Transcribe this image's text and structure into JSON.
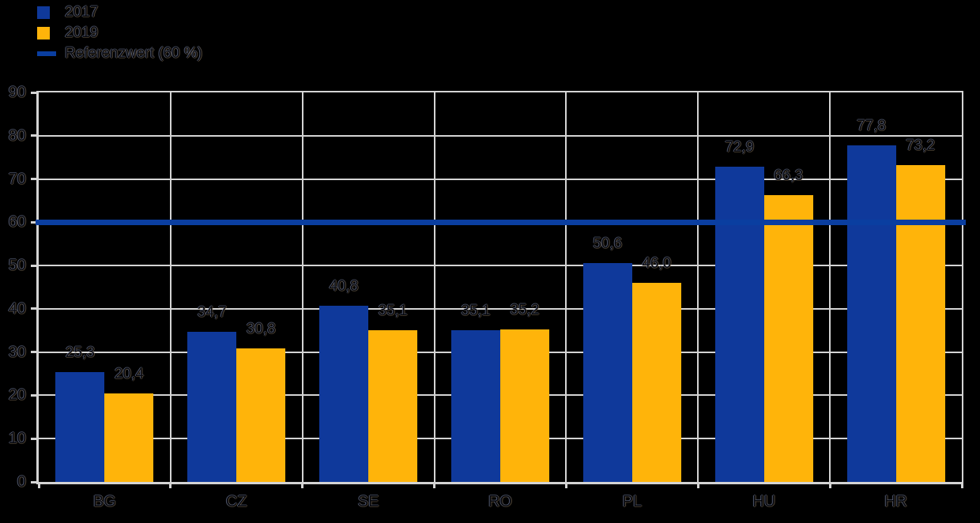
{
  "background": "#000000",
  "legend": {
    "items": [
      {
        "label": "2017",
        "swatch": "square",
        "color": "#0F399B"
      },
      {
        "label": "2019",
        "swatch": "square",
        "color": "#FFB40A"
      },
      {
        "label": "Referenzwert (60 %)",
        "swatch": "line",
        "color": "#0A3EA0"
      }
    ]
  },
  "chart_data": {
    "type": "bar",
    "categories": [
      "BG",
      "CZ",
      "SE",
      "RO",
      "PL",
      "HU",
      "HR"
    ],
    "series": [
      {
        "name": "2017",
        "color": "#0F399B",
        "values": [
          25.3,
          34.7,
          40.8,
          35.1,
          50.6,
          72.9,
          77.8
        ],
        "value_labels": [
          "25,3",
          "34,7",
          "40,8",
          "35,1",
          "50,6",
          "72,9",
          "77,8"
        ]
      },
      {
        "name": "2019",
        "color": "#FFB40A",
        "values": [
          20.4,
          30.8,
          35.1,
          35.2,
          46.0,
          66.3,
          73.2
        ],
        "value_labels": [
          "20,4",
          "30,8",
          "35,1",
          "35,2",
          "46,0",
          "66,3",
          "73,2"
        ]
      }
    ],
    "reference_line": {
      "label": "Referenzwert (60 %)",
      "value": 60,
      "color": "#0A3EA0"
    },
    "ylim": [
      0,
      90
    ],
    "ytick_step": 10,
    "ytick_labels": [
      "0",
      "10",
      "20",
      "30",
      "40",
      "50",
      "60",
      "70",
      "80",
      "90"
    ],
    "grid": true,
    "grid_color": "#D4D4D4",
    "legend_position": "top-left"
  }
}
